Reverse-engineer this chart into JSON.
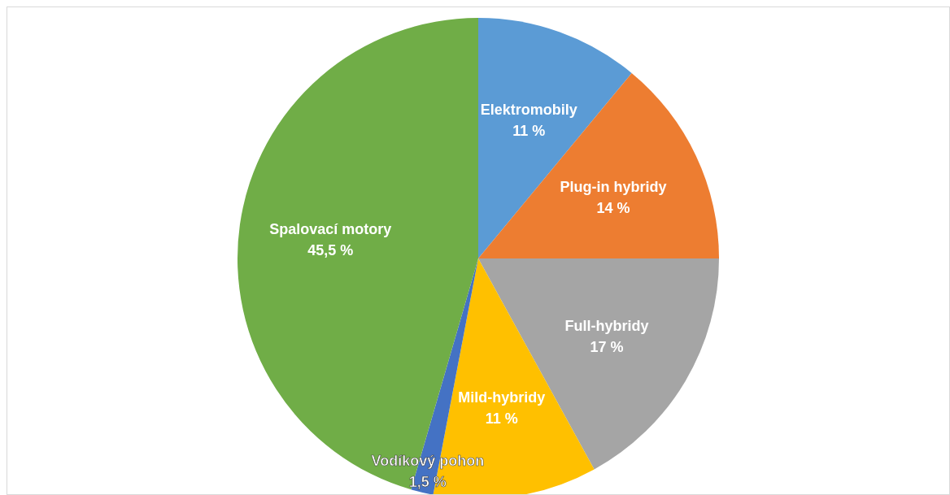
{
  "chart_data": {
    "type": "pie",
    "categories": [
      "Elektromobily",
      "Plug-in hybridy",
      "Full-hybridy",
      "Mild-hybridy",
      "Vodíkový pohon",
      "Spalovací motory"
    ],
    "values": [
      11,
      14,
      17,
      11,
      1.5,
      45.5
    ],
    "value_labels": [
      "11 %",
      "14 %",
      "17 %",
      "11 %",
      "1,5 %",
      "45,5 %"
    ],
    "colors": [
      "#5b9bd5",
      "#ed7d31",
      "#a5a5a5",
      "#ffc000",
      "#4472c4",
      "#70ad47"
    ],
    "legend": false
  }
}
